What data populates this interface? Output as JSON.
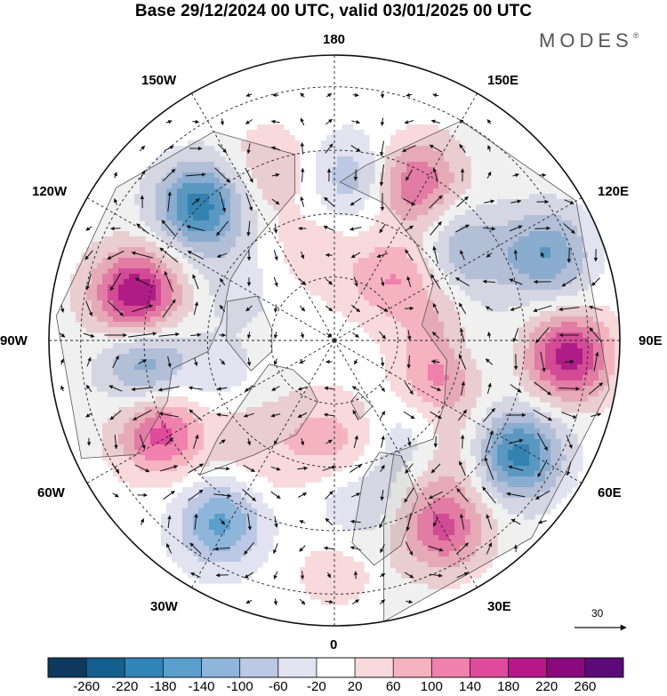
{
  "title": "Base 29/12/2024 00 UTC, valid 03/01/2025 00 UTC",
  "brand": "MODES",
  "brand_mark": "®",
  "longitude_labels": {
    "n180": "180",
    "w150": "150W",
    "e150": "150E",
    "w120": "120W",
    "e120": "120E",
    "w90": "90W",
    "e90": "90E",
    "w60": "60W",
    "e60": "60E",
    "w30": "30W",
    "e30": "30E",
    "s0": "0"
  },
  "reference_vector": {
    "value": "30"
  },
  "colorbar": {
    "levels": [
      "-260",
      "-220",
      "-180",
      "-140",
      "-100",
      "-60",
      "-20",
      "20",
      "60",
      "100",
      "140",
      "180",
      "220",
      "260"
    ],
    "colors": [
      "#0d3a5e",
      "#155f8e",
      "#2f85b8",
      "#5b9fcd",
      "#8fb5db",
      "#bcc8e4",
      "#e2e2f1",
      "#ffffff",
      "#f8d9dc",
      "#f5b3c0",
      "#f080ac",
      "#e04a9b",
      "#b8178a",
      "#8a0a7e",
      "#5c0a78"
    ]
  },
  "anomaly_centers": [
    {
      "lon": -103,
      "colat": 32,
      "value": 225
    },
    {
      "lon": -135,
      "colat": 30,
      "value": -200
    },
    {
      "lon": -160,
      "colat": 29,
      "value": 60
    },
    {
      "lon": 174,
      "colat": 26,
      "value": -90
    },
    {
      "lon": 153,
      "colat": 28,
      "value": 140
    },
    {
      "lon": 135,
      "colat": 14,
      "value": 90
    },
    {
      "lon": 124,
      "colat": 25,
      "value": -100
    },
    {
      "lon": 112,
      "colat": 36,
      "value": -140
    },
    {
      "lon": 86,
      "colat": 37,
      "value": 200
    },
    {
      "lon": 58,
      "colat": 34,
      "value": -200
    },
    {
      "lon": 72,
      "colat": 18,
      "value": 120
    },
    {
      "lon": 86,
      "colat": 22,
      "value": -60
    },
    {
      "lon": 100,
      "colat": 17,
      "value": 50
    },
    {
      "lon": 30,
      "colat": 34,
      "value": 150
    },
    {
      "lon": 35,
      "colat": 20,
      "value": -60
    },
    {
      "lon": 8,
      "colat": 26,
      "value": -60
    },
    {
      "lon": 6,
      "colat": 17,
      "value": 50
    },
    {
      "lon": -10,
      "colat": 14,
      "value": 40
    },
    {
      "lon": -32,
      "colat": 34,
      "value": -150
    },
    {
      "lon": -62,
      "colat": 31,
      "value": 160
    },
    {
      "lon": -83,
      "colat": 30,
      "value": -130
    },
    {
      "lon": -70,
      "colat": 19,
      "value": -40
    },
    {
      "lon": -25,
      "colat": 22,
      "value": 30
    },
    {
      "lon": 0,
      "colat": 36,
      "value": 40
    },
    {
      "lon": 45,
      "colat": 26,
      "value": 60
    },
    {
      "lon": -45,
      "colat": 20,
      "value": 40
    },
    {
      "lon": -120,
      "colat": 18,
      "value": -40
    },
    {
      "lon": -165,
      "colat": 15,
      "value": 40
    },
    {
      "lon": 160,
      "colat": 10,
      "value": 20
    }
  ]
}
